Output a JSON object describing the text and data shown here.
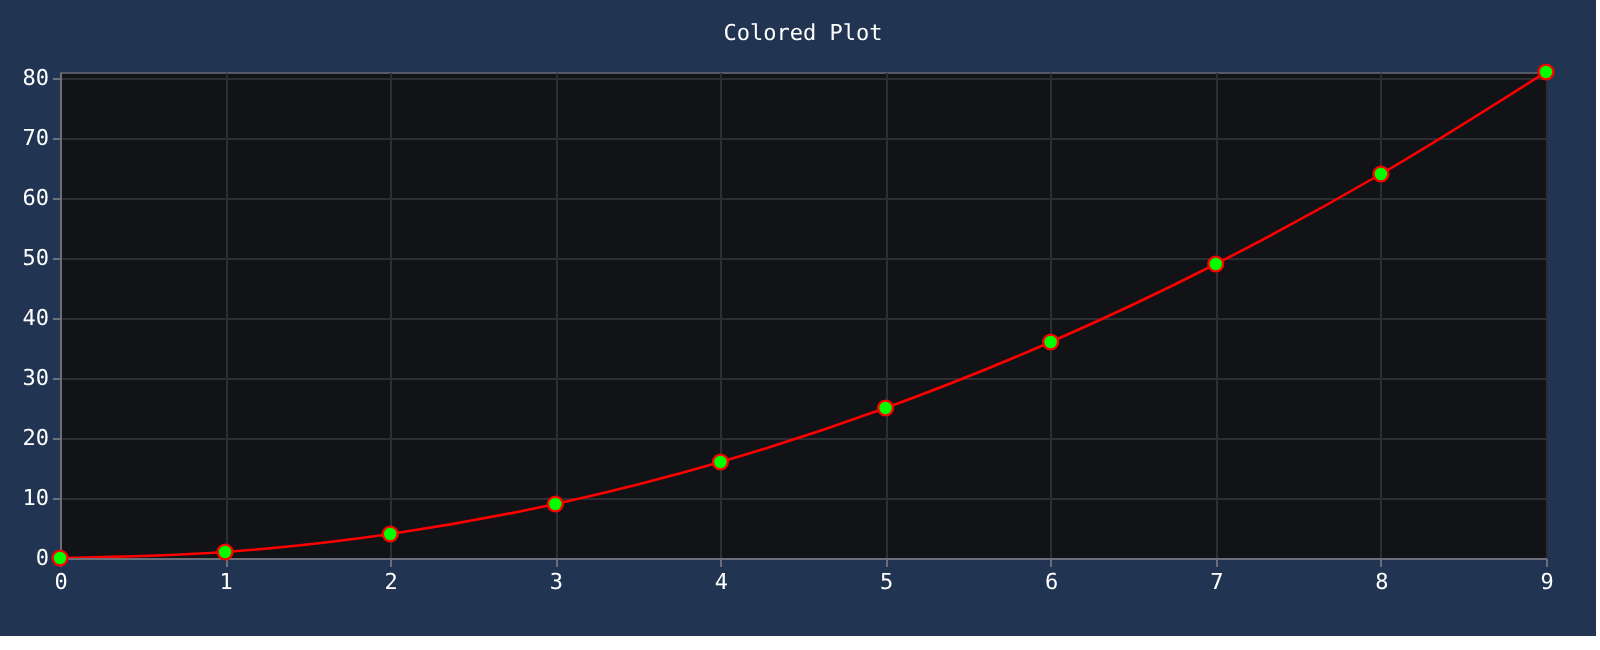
{
  "chart_data": {
    "type": "line",
    "title": "Colored Plot",
    "x": [
      0,
      1,
      2,
      3,
      4,
      5,
      6,
      7,
      8,
      9
    ],
    "series": [
      {
        "color": "#ff0000",
        "values": [
          0,
          1,
          4,
          9,
          16,
          25,
          36,
          49,
          64,
          81
        ]
      }
    ],
    "xlim": [
      0,
      9
    ],
    "xticks": [
      0,
      1,
      2,
      3,
      4,
      5,
      6,
      7,
      8,
      9
    ],
    "ylim": [
      0,
      81
    ],
    "yticks": [
      0,
      10,
      20,
      30,
      40,
      50,
      60,
      70,
      80
    ],
    "grid": true,
    "marker": "circle",
    "line_style": "solid"
  }
}
